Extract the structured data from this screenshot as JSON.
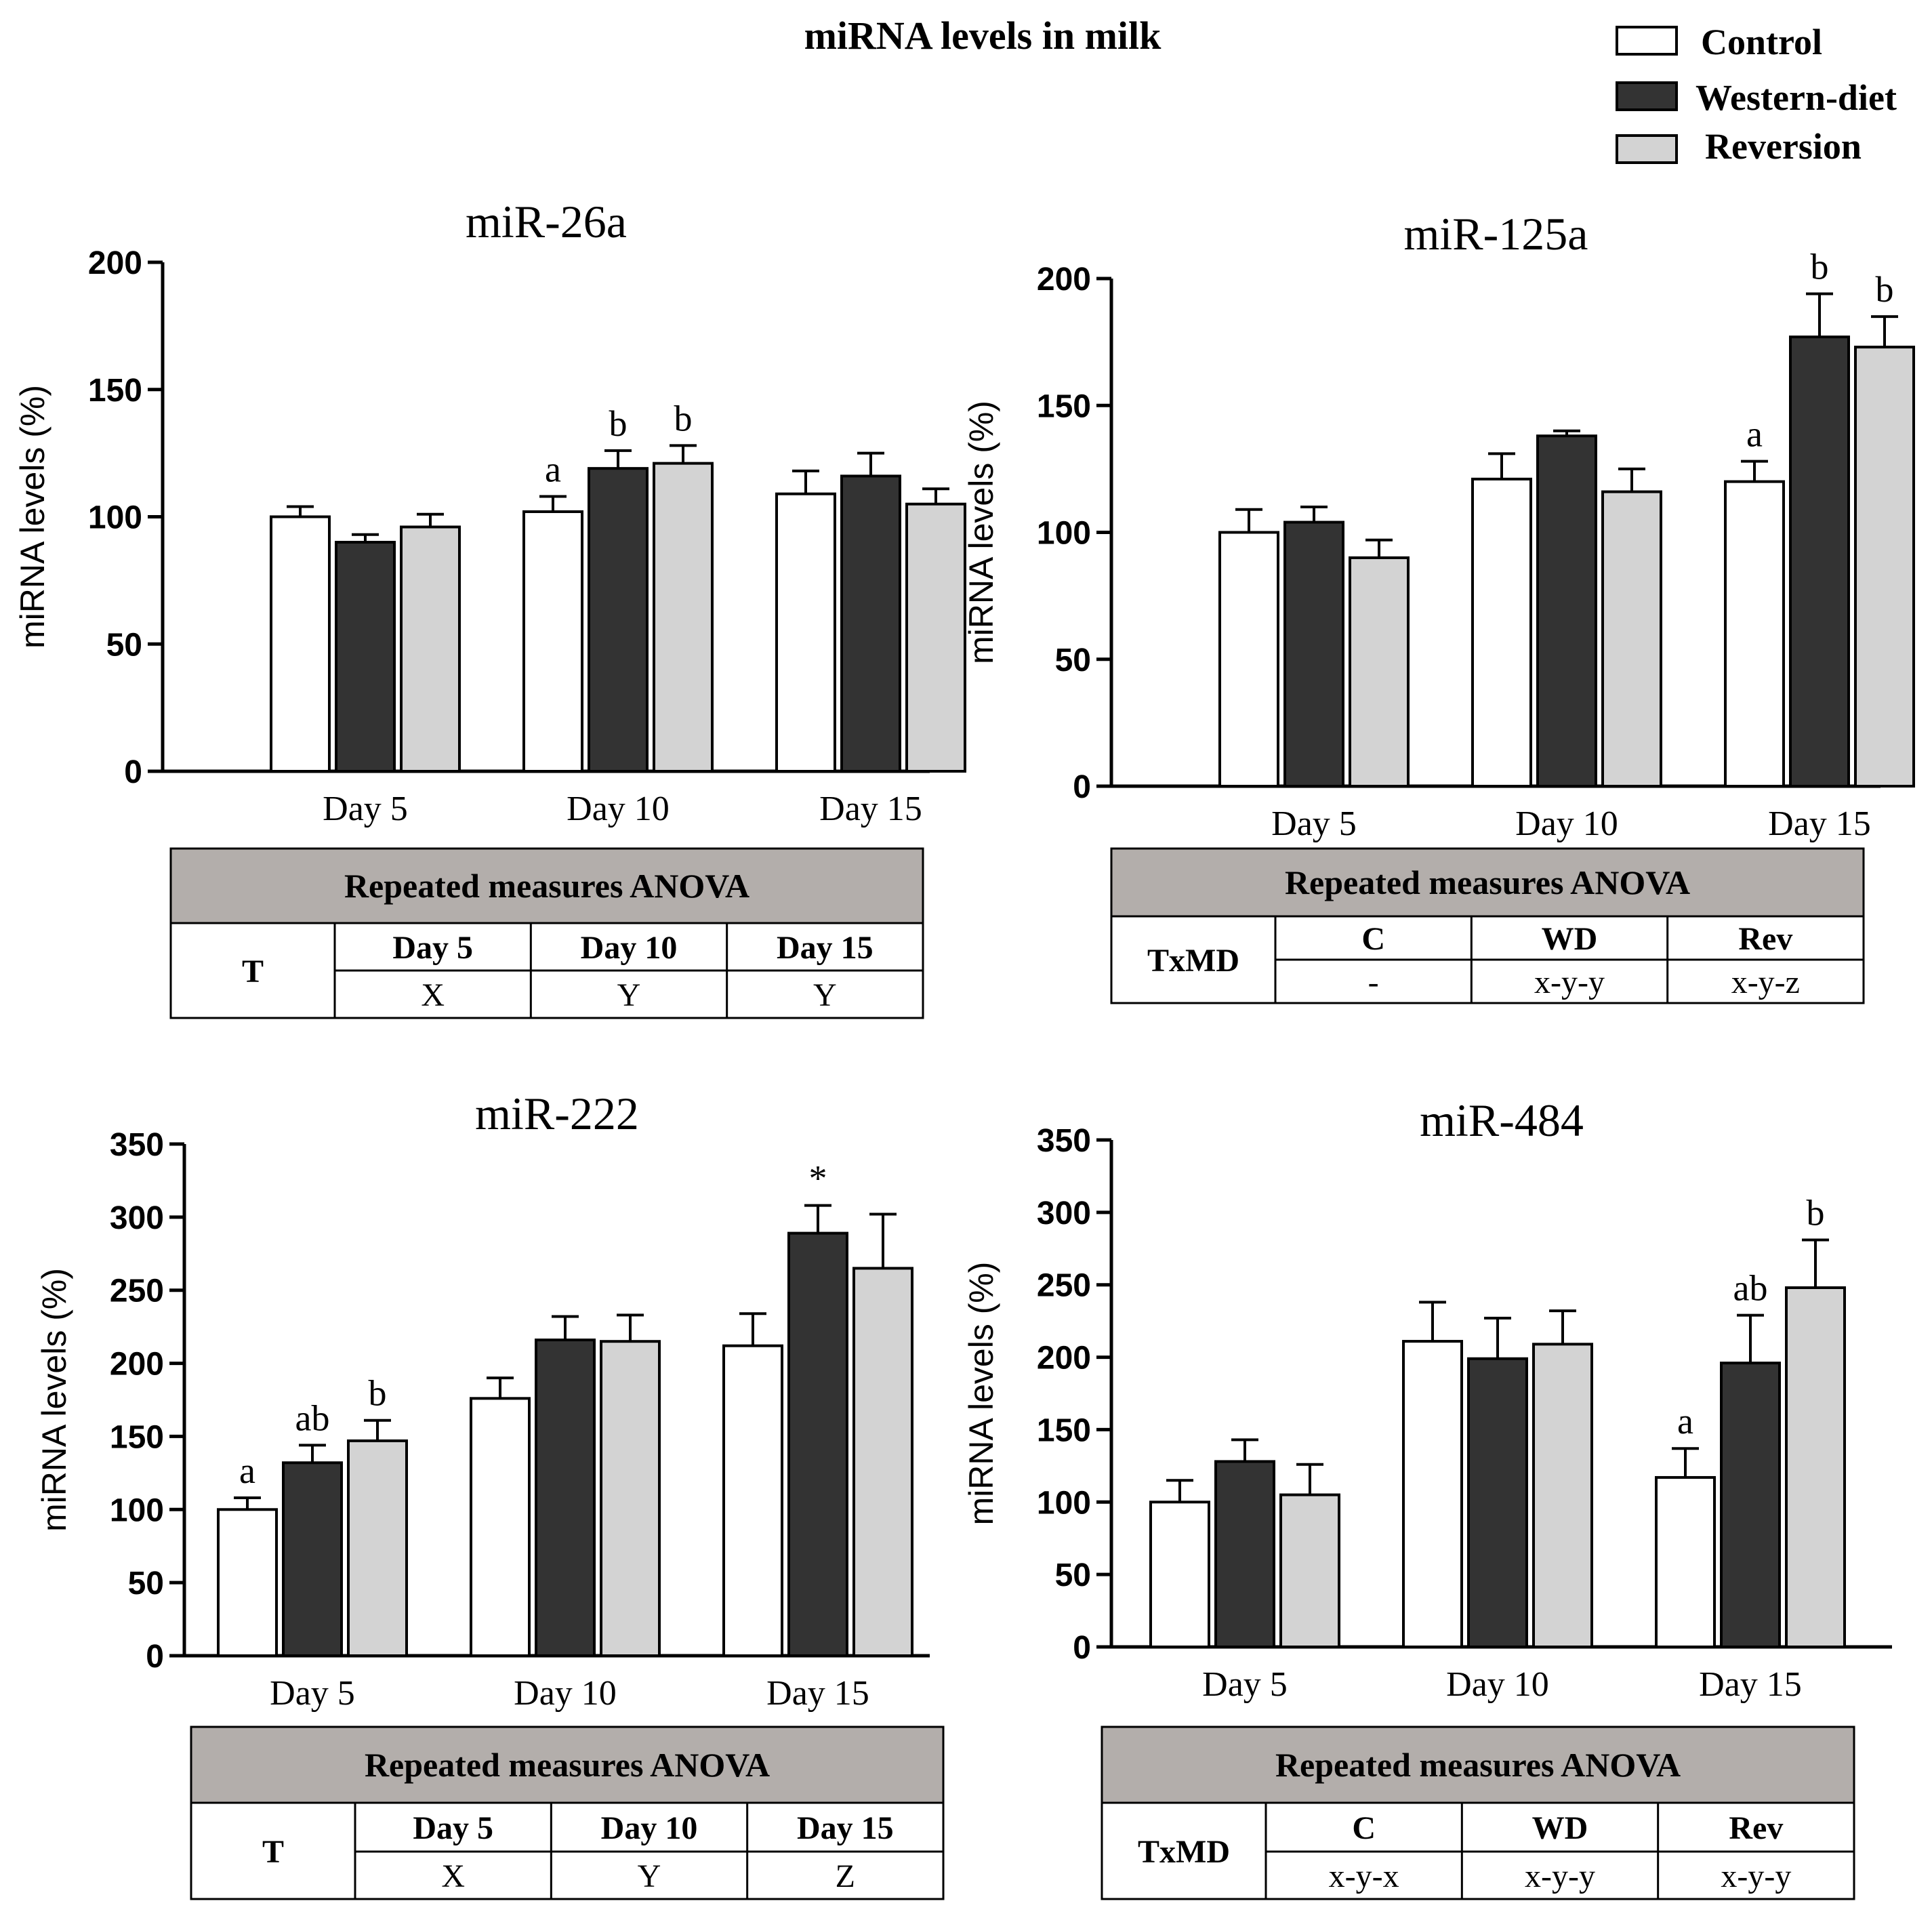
{
  "figure_title": "miRNA levels in milk",
  "legend": [
    {
      "label": "Control",
      "color": "#ffffff"
    },
    {
      "label": "Western-diet",
      "color": "#333333"
    },
    {
      "label": "Reversion",
      "color": "#d3d3d3"
    }
  ],
  "colors": {
    "axis": "#000000",
    "table_header": "#b3aeab",
    "bar_edge": "#000000"
  },
  "chart_data": [
    {
      "type": "bar",
      "title": "miR-26a",
      "ylabel": "miRNA levels (%)",
      "xlabel": "",
      "ylim": [
        0,
        200
      ],
      "yticks": [
        0,
        50,
        100,
        150,
        200
      ],
      "categories": [
        "Day 5",
        "Day 10",
        "Day 15"
      ],
      "series": [
        {
          "name": "Control",
          "values": [
            100,
            102,
            109
          ],
          "errors": [
            4,
            6,
            9
          ],
          "labels": [
            "",
            "a",
            ""
          ]
        },
        {
          "name": "Western-diet",
          "values": [
            90,
            119,
            116
          ],
          "errors": [
            3,
            7,
            9
          ],
          "labels": [
            "",
            "b",
            ""
          ]
        },
        {
          "name": "Reversion",
          "values": [
            96,
            121,
            105
          ],
          "errors": [
            5,
            7,
            6
          ],
          "labels": [
            "",
            "b",
            ""
          ]
        }
      ],
      "table": {
        "header": "Repeated measures ANOVA",
        "row_label": "T",
        "columns": [
          "Day 5",
          "Day 10",
          "Day 15"
        ],
        "values": [
          "X",
          "Y",
          "Y"
        ]
      }
    },
    {
      "type": "bar",
      "title": "miR-125a",
      "ylabel": "miRNA levels (%)",
      "xlabel": "",
      "ylim": [
        0,
        200
      ],
      "yticks": [
        0,
        50,
        100,
        150,
        200
      ],
      "categories": [
        "Day 5",
        "Day 10",
        "Day 15"
      ],
      "series": [
        {
          "name": "Control",
          "values": [
            100,
            121,
            120
          ],
          "errors": [
            9,
            10,
            8
          ],
          "labels": [
            "",
            "",
            "a"
          ]
        },
        {
          "name": "Western-diet",
          "values": [
            104,
            138,
            177
          ],
          "errors": [
            6,
            2,
            17
          ],
          "labels": [
            "",
            "",
            "b"
          ]
        },
        {
          "name": "Reversion",
          "values": [
            90,
            116,
            173
          ],
          "errors": [
            7,
            9,
            12
          ],
          "labels": [
            "",
            "",
            "b"
          ]
        }
      ],
      "table": {
        "header": "Repeated measures ANOVA",
        "row_label": "TxMD",
        "columns": [
          "C",
          "WD",
          "Rev"
        ],
        "values": [
          "-",
          "x-y-y",
          "x-y-z"
        ]
      }
    },
    {
      "type": "bar",
      "title": "miR-222",
      "ylabel": "miRNA levels (%)",
      "xlabel": "",
      "ylim": [
        0,
        350
      ],
      "yticks": [
        0,
        50,
        100,
        150,
        200,
        250,
        300,
        350
      ],
      "categories": [
        "Day 5",
        "Day 10",
        "Day 15"
      ],
      "series": [
        {
          "name": "Control",
          "values": [
            100,
            176,
            212
          ],
          "errors": [
            8,
            14,
            22
          ],
          "labels": [
            "a",
            "",
            ""
          ]
        },
        {
          "name": "Western-diet",
          "values": [
            132,
            216,
            289
          ],
          "errors": [
            12,
            16,
            19
          ],
          "labels": [
            "ab",
            "",
            "*"
          ]
        },
        {
          "name": "Reversion",
          "values": [
            147,
            215,
            265
          ],
          "errors": [
            14,
            18,
            37
          ],
          "labels": [
            "b",
            "",
            ""
          ]
        }
      ],
      "table": {
        "header": "Repeated measures ANOVA",
        "row_label": "T",
        "columns": [
          "Day 5",
          "Day 10",
          "Day 15"
        ],
        "values": [
          "X",
          "Y",
          "Z"
        ]
      }
    },
    {
      "type": "bar",
      "title": "miR-484",
      "ylabel": "miRNA levels (%)",
      "xlabel": "",
      "ylim": [
        0,
        350
      ],
      "yticks": [
        0,
        50,
        100,
        150,
        200,
        250,
        300,
        350
      ],
      "categories": [
        "Day 5",
        "Day 10",
        "Day 15"
      ],
      "series": [
        {
          "name": "Control",
          "values": [
            100,
            211,
            117
          ],
          "errors": [
            15,
            27,
            20
          ],
          "labels": [
            "",
            "",
            "a"
          ]
        },
        {
          "name": "Western-diet",
          "values": [
            128,
            199,
            196
          ],
          "errors": [
            15,
            28,
            33
          ],
          "labels": [
            "",
            "",
            "ab"
          ]
        },
        {
          "name": "Reversion",
          "values": [
            105,
            209,
            248
          ],
          "errors": [
            21,
            23,
            33
          ],
          "labels": [
            "",
            "",
            "b"
          ]
        }
      ],
      "table": {
        "header": "Repeated measures ANOVA",
        "row_label": "TxMD",
        "columns": [
          "C",
          "WD",
          "Rev"
        ],
        "values": [
          "x-y-x",
          "x-y-y",
          "x-y-y"
        ]
      }
    }
  ]
}
